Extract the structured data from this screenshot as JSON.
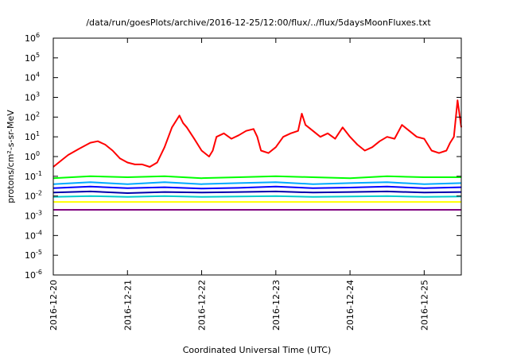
{
  "chart_data": {
    "type": "line",
    "title": "/data/run/goesPlots/archive/2016-12-25/12:00/flux/../flux/5daysMoonFluxes.txt",
    "xlabel": "Coordinated Universal Time (UTC)",
    "ylabel": "protons/cm²-s-sr-MeV",
    "yscale": "log",
    "ylim": [
      1e-06,
      1000000.0
    ],
    "xlim_days": [
      0,
      5.5
    ],
    "x_ticks": [
      "2016-12-20",
      "2016-12-21",
      "2016-12-22",
      "2016-12-23",
      "2016-12-24",
      "2016-12-25"
    ],
    "y_ticks": [
      {
        "base": "10",
        "exp": "-6"
      },
      {
        "base": "10",
        "exp": "-5"
      },
      {
        "base": "10",
        "exp": "-4"
      },
      {
        "base": "10",
        "exp": "-3"
      },
      {
        "base": "10",
        "exp": "-2"
      },
      {
        "base": "10",
        "exp": "-1"
      },
      {
        "base": "10",
        "exp": "0"
      },
      {
        "base": "10",
        "exp": "1"
      },
      {
        "base": "10",
        "exp": "2"
      },
      {
        "base": "10",
        "exp": "3"
      },
      {
        "base": "10",
        "exp": "4"
      },
      {
        "base": "10",
        "exp": "5"
      },
      {
        "base": "10",
        "exp": "6"
      }
    ],
    "grid": false,
    "legend": "none",
    "series": [
      {
        "color": "#ff0000",
        "x": [
          0,
          0.1,
          0.2,
          0.35,
          0.5,
          0.6,
          0.7,
          0.8,
          0.9,
          1.0,
          1.1,
          1.2,
          1.3,
          1.4,
          1.5,
          1.6,
          1.7,
          1.75,
          1.8,
          1.9,
          2.0,
          2.1,
          2.15,
          2.2,
          2.3,
          2.4,
          2.5,
          2.6,
          2.7,
          2.75,
          2.8,
          2.9,
          3.0,
          3.1,
          3.2,
          3.3,
          3.35,
          3.4,
          3.5,
          3.6,
          3.7,
          3.8,
          3.9,
          4.0,
          4.1,
          4.2,
          4.3,
          4.4,
          4.5,
          4.6,
          4.7,
          4.8,
          4.9,
          5.0,
          5.1,
          5.2,
          5.3,
          5.35,
          5.4,
          5.45,
          5.5
        ],
        "y": [
          0.3,
          0.6,
          1.2,
          2.5,
          5,
          6,
          4,
          2,
          0.8,
          0.5,
          0.4,
          0.4,
          0.3,
          0.5,
          3,
          30,
          120,
          50,
          30,
          8,
          2,
          1,
          2,
          10,
          15,
          8,
          12,
          20,
          25,
          10,
          2,
          1.5,
          3,
          10,
          15,
          20,
          150,
          40,
          20,
          10,
          15,
          8,
          30,
          10,
          4,
          2,
          3,
          6,
          10,
          8,
          40,
          20,
          10,
          8,
          2,
          1.5,
          2,
          5,
          10,
          700,
          30
        ]
      },
      {
        "color": "#00ff00",
        "x": [
          0,
          0.5,
          1.0,
          1.5,
          2.0,
          2.5,
          3.0,
          3.5,
          4.0,
          4.5,
          5.0,
          5.5
        ],
        "y": [
          0.08,
          0.1,
          0.09,
          0.1,
          0.08,
          0.09,
          0.1,
          0.09,
          0.08,
          0.1,
          0.09,
          0.09
        ]
      },
      {
        "color": "#00aaff",
        "x": [
          0,
          0.5,
          1.0,
          1.5,
          2.0,
          2.5,
          3.0,
          3.5,
          4.0,
          4.5,
          5.0,
          5.5
        ],
        "y": [
          0.04,
          0.05,
          0.04,
          0.05,
          0.04,
          0.045,
          0.05,
          0.04,
          0.045,
          0.05,
          0.04,
          0.045
        ]
      },
      {
        "color": "#0000ff",
        "x": [
          0,
          0.5,
          1.0,
          1.5,
          2.0,
          2.5,
          3.0,
          3.5,
          4.0,
          4.5,
          5.0,
          5.5
        ],
        "y": [
          0.025,
          0.03,
          0.025,
          0.028,
          0.024,
          0.026,
          0.03,
          0.025,
          0.027,
          0.03,
          0.025,
          0.028
        ]
      },
      {
        "color": "#0000aa",
        "x": [
          0,
          0.5,
          1.0,
          1.5,
          2.0,
          2.5,
          3.0,
          3.5,
          4.0,
          4.5,
          5.0,
          5.5
        ],
        "y": [
          0.015,
          0.017,
          0.014,
          0.016,
          0.015,
          0.016,
          0.017,
          0.015,
          0.016,
          0.017,
          0.015,
          0.016
        ]
      },
      {
        "color": "#00cccc",
        "x": [
          0,
          0.5,
          1.0,
          1.5,
          2.0,
          2.5,
          3.0,
          3.5,
          4.0,
          4.5,
          5.0,
          5.5
        ],
        "y": [
          0.009,
          0.01,
          0.009,
          0.01,
          0.009,
          0.0095,
          0.01,
          0.009,
          0.0095,
          0.01,
          0.009,
          0.0095
        ]
      },
      {
        "color": "#ffff00",
        "x": [
          0,
          0.5,
          1.0,
          1.5,
          2.0,
          2.5,
          3.0,
          3.5,
          4.0,
          4.5,
          5.0,
          5.5
        ],
        "y": [
          0.005,
          0.005,
          0.005,
          0.005,
          0.005,
          0.005,
          0.005,
          0.005,
          0.005,
          0.005,
          0.005,
          0.005
        ]
      },
      {
        "color": "#800080",
        "x": [
          0,
          0.5,
          1.0,
          1.5,
          2.0,
          2.5,
          3.0,
          3.5,
          4.0,
          4.5,
          5.0,
          5.5
        ],
        "y": [
          0.002,
          0.002,
          0.002,
          0.002,
          0.002,
          0.002,
          0.002,
          0.002,
          0.002,
          0.002,
          0.002,
          0.002
        ]
      }
    ]
  }
}
